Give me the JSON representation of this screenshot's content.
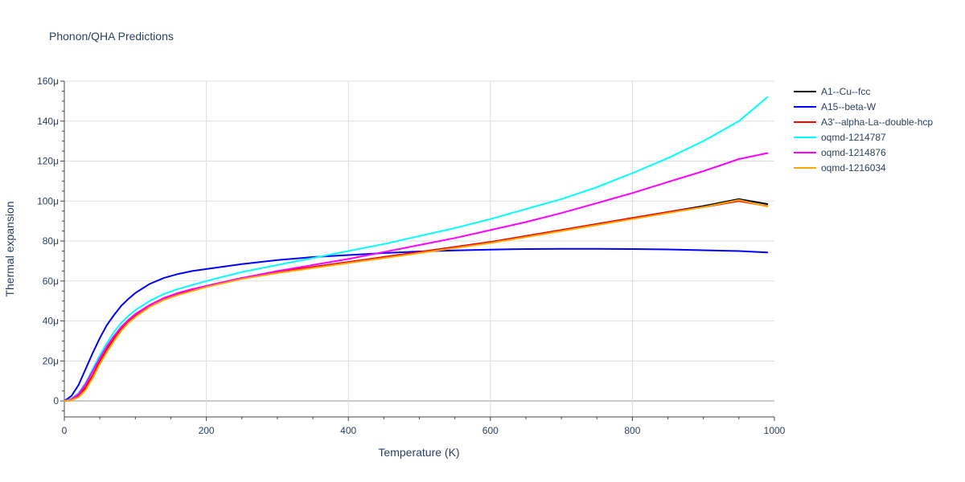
{
  "chart_data": {
    "type": "line",
    "title": "Phonon/QHA Predictions",
    "xlabel": "Temperature (K)",
    "ylabel": "Thermal expansion",
    "xlim": [
      0,
      1000
    ],
    "ylim": [
      -8,
      160
    ],
    "y_unit_suffix": "μ",
    "x_ticks": [
      0,
      200,
      400,
      600,
      800,
      1000
    ],
    "y_ticks": [
      0,
      20,
      40,
      60,
      80,
      100,
      120,
      140,
      160
    ],
    "y_tick_labels": [
      "0",
      "20μ",
      "40μ",
      "60μ",
      "80μ",
      "100μ",
      "120μ",
      "140μ",
      "160μ"
    ],
    "grid": true,
    "legend_position": "top-right",
    "series": [
      {
        "name": "A1--Cu--fcc",
        "color": "#000000",
        "x": [
          0,
          10,
          20,
          30,
          40,
          50,
          60,
          70,
          80,
          90,
          100,
          120,
          140,
          160,
          180,
          200,
          250,
          300,
          350,
          400,
          450,
          500,
          550,
          600,
          650,
          700,
          750,
          800,
          850,
          900,
          950,
          990
        ],
        "y": [
          0,
          0.5,
          2,
          6,
          12,
          19,
          25,
          30.5,
          35.5,
          39.5,
          42.5,
          47.5,
          51,
          53.5,
          55.5,
          57.5,
          61.5,
          64.5,
          67,
          69.5,
          72,
          74.5,
          77,
          79.5,
          82.5,
          85.5,
          88.5,
          91.5,
          94.5,
          97.5,
          101,
          98.5
        ]
      },
      {
        "name": "A15--beta-W",
        "color": "#0000ff",
        "x": [
          0,
          10,
          20,
          30,
          40,
          50,
          60,
          70,
          80,
          90,
          100,
          120,
          140,
          160,
          180,
          200,
          250,
          300,
          350,
          400,
          450,
          500,
          550,
          600,
          650,
          700,
          750,
          800,
          850,
          900,
          950,
          990
        ],
        "y": [
          0,
          2.5,
          8,
          16,
          24,
          31.5,
          38,
          43,
          47.5,
          51,
          54,
          58.5,
          61.5,
          63.5,
          65,
          66,
          68.5,
          70.5,
          72,
          73,
          74,
          74.8,
          75.3,
          75.7,
          76,
          76.1,
          76.1,
          76,
          75.8,
          75.4,
          75,
          74.3
        ]
      },
      {
        "name": "A3'--alpha-La--double-hcp",
        "color": "#ff0000",
        "x": [
          0,
          10,
          20,
          30,
          40,
          50,
          60,
          70,
          80,
          90,
          100,
          120,
          140,
          160,
          180,
          200,
          250,
          300,
          350,
          400,
          450,
          500,
          550,
          600,
          650,
          700,
          750,
          800,
          850,
          900,
          950,
          990
        ],
        "y": [
          0,
          0.5,
          2.5,
          7,
          13,
          20,
          26,
          31.5,
          36,
          40,
          43,
          47.5,
          51,
          53.5,
          55.5,
          57.5,
          61.5,
          64.5,
          67,
          69.5,
          72,
          74.5,
          77,
          79.5,
          82.5,
          85.5,
          88.5,
          91.5,
          94.5,
          97,
          100,
          97.5
        ]
      },
      {
        "name": "oqmd-1214787",
        "color": "#00ffff",
        "x": [
          0,
          10,
          20,
          30,
          40,
          50,
          60,
          70,
          80,
          90,
          100,
          120,
          140,
          160,
          180,
          200,
          250,
          300,
          350,
          400,
          450,
          500,
          550,
          600,
          650,
          700,
          750,
          800,
          850,
          900,
          950,
          990
        ],
        "y": [
          0,
          1,
          4,
          9,
          16,
          23,
          29,
          34.5,
          39,
          42.5,
          45.5,
          50,
          53.5,
          56,
          58,
          60,
          64.5,
          68,
          71.5,
          75,
          78.5,
          82.5,
          86.5,
          91,
          96,
          101,
          107,
          114,
          121.5,
          130,
          140,
          152
        ]
      },
      {
        "name": "oqmd-1214876",
        "color": "#ff00ff",
        "x": [
          0,
          10,
          20,
          30,
          40,
          50,
          60,
          70,
          80,
          90,
          100,
          120,
          140,
          160,
          180,
          200,
          250,
          300,
          350,
          400,
          450,
          500,
          550,
          600,
          650,
          700,
          750,
          800,
          850,
          900,
          950,
          990
        ],
        "y": [
          0,
          0.8,
          3.5,
          8.5,
          15,
          21.5,
          27.5,
          32.5,
          37,
          40.5,
          43.5,
          48,
          51.5,
          54,
          56,
          57.5,
          61.5,
          65,
          68,
          71,
          74.5,
          78,
          81.5,
          85.5,
          89.5,
          94,
          99,
          104,
          109.5,
          115,
          121,
          124
        ]
      },
      {
        "name": "oqmd-1216034",
        "color": "#ffa500",
        "x": [
          0,
          10,
          20,
          30,
          40,
          50,
          60,
          70,
          80,
          90,
          100,
          120,
          140,
          160,
          180,
          200,
          250,
          300,
          350,
          400,
          450,
          500,
          550,
          600,
          650,
          700,
          750,
          800,
          850,
          900,
          950,
          990
        ],
        "y": [
          0,
          0.4,
          1.8,
          5.5,
          11.5,
          18.5,
          24.5,
          30,
          35,
          39,
          42,
          47,
          50.5,
          53,
          55,
          57,
          61,
          64,
          66.5,
          69,
          71.5,
          74,
          76.5,
          79,
          82,
          85,
          88,
          91,
          94,
          97,
          100.5,
          97.3
        ]
      }
    ]
  }
}
